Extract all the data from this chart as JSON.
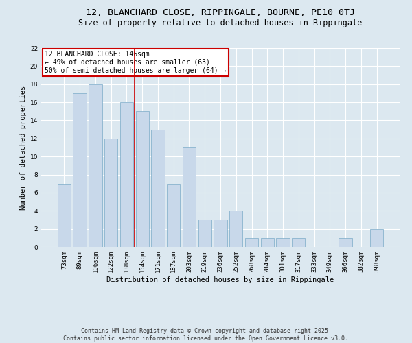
{
  "title": "12, BLANCHARD CLOSE, RIPPINGALE, BOURNE, PE10 0TJ",
  "subtitle": "Size of property relative to detached houses in Rippingale",
  "xlabel": "Distribution of detached houses by size in Rippingale",
  "ylabel": "Number of detached properties",
  "categories": [
    "73sqm",
    "89sqm",
    "106sqm",
    "122sqm",
    "138sqm",
    "154sqm",
    "171sqm",
    "187sqm",
    "203sqm",
    "219sqm",
    "236sqm",
    "252sqm",
    "268sqm",
    "284sqm",
    "301sqm",
    "317sqm",
    "333sqm",
    "349sqm",
    "366sqm",
    "382sqm",
    "398sqm"
  ],
  "values": [
    7,
    17,
    18,
    12,
    16,
    15,
    13,
    7,
    11,
    3,
    3,
    4,
    1,
    1,
    1,
    1,
    0,
    0,
    1,
    0,
    2
  ],
  "bar_color": "#c8d8ea",
  "bar_edge_color": "#7aaac8",
  "vline_x": 4.5,
  "vline_color": "#cc0000",
  "annotation_text": "12 BLANCHARD CLOSE: 146sqm\n← 49% of detached houses are smaller (63)\n50% of semi-detached houses are larger (64) →",
  "annotation_box_facecolor": "#ffffff",
  "annotation_box_edgecolor": "#cc0000",
  "ylim": [
    0,
    22
  ],
  "yticks": [
    0,
    2,
    4,
    6,
    8,
    10,
    12,
    14,
    16,
    18,
    20,
    22
  ],
  "background_color": "#dce8f0",
  "grid_color": "#ffffff",
  "footnote": "Contains HM Land Registry data © Crown copyright and database right 2025.\nContains public sector information licensed under the Open Government Licence v3.0.",
  "title_fontsize": 9.5,
  "subtitle_fontsize": 8.5,
  "axis_label_fontsize": 7.5,
  "tick_fontsize": 6.5,
  "annotation_fontsize": 7,
  "footnote_fontsize": 6
}
